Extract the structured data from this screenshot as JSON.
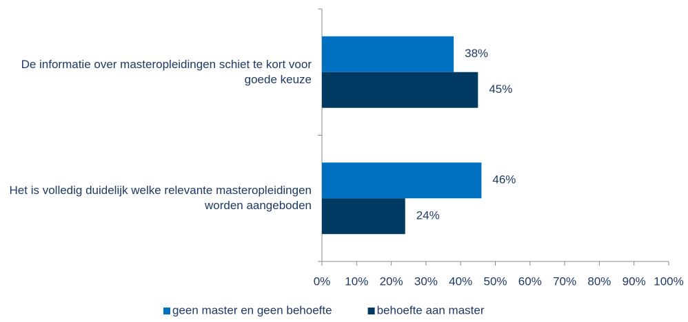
{
  "chart_data": {
    "type": "barh",
    "categories": [
      "De informatie over masteropleidingen schiet te kort voor goede keuze",
      "Het is volledig duidelijk welke relevante masteropleidingen worden aangeboden"
    ],
    "series": [
      {
        "name": "geen master en geen behoefte",
        "color": "#0070c0",
        "values": [
          38,
          46
        ],
        "value_labels": [
          "38%",
          "46%"
        ]
      },
      {
        "name": "behoefte aan master",
        "color": "#003a63",
        "values": [
          45,
          24
        ],
        "value_labels": [
          "45%",
          "24%"
        ]
      }
    ],
    "xlim": [
      0,
      100
    ],
    "xticks": [
      {
        "value": 0,
        "label": "0%"
      },
      {
        "value": 10,
        "label": "10%"
      },
      {
        "value": 20,
        "label": "20%"
      },
      {
        "value": 30,
        "label": "30%"
      },
      {
        "value": 40,
        "label": "40%"
      },
      {
        "value": 50,
        "label": "50%"
      },
      {
        "value": 60,
        "label": "60%"
      },
      {
        "value": 70,
        "label": "70%"
      },
      {
        "value": 80,
        "label": "80%"
      },
      {
        "value": 90,
        "label": "90%"
      },
      {
        "value": 100,
        "label": "100%"
      }
    ],
    "legend": "bottom",
    "grid": false
  }
}
